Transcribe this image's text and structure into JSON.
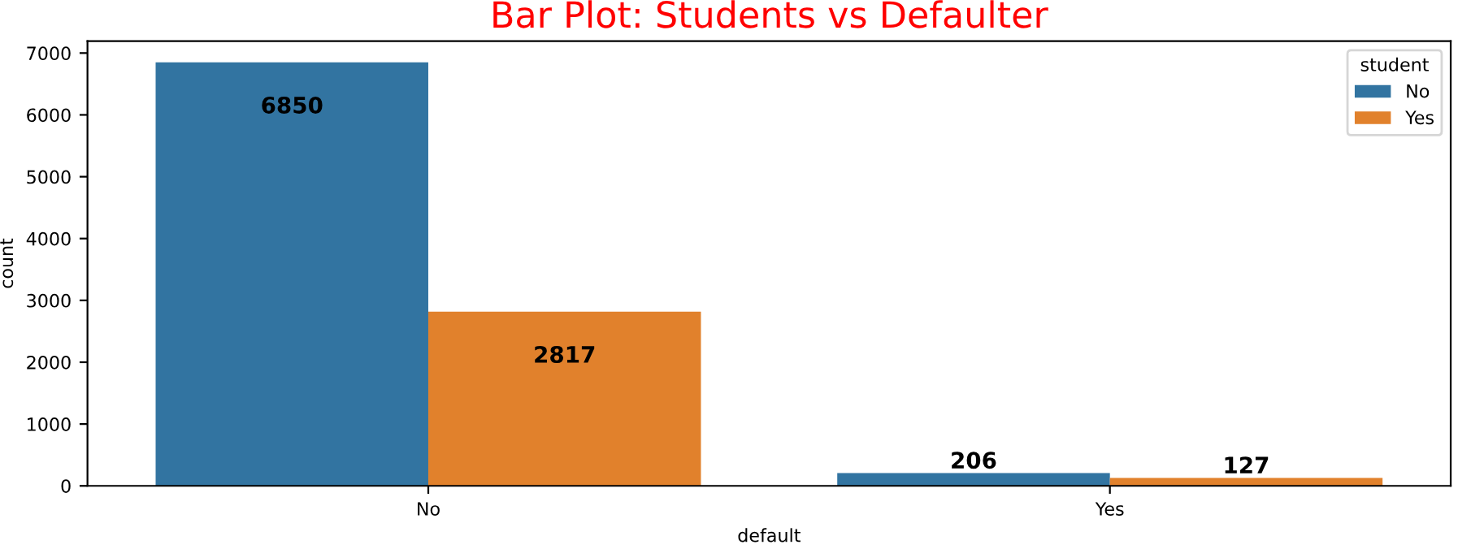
{
  "chart_data": {
    "type": "bar",
    "title": "Bar Plot: Students vs Defaulter",
    "xlabel": "default",
    "ylabel": "count",
    "legend_title": "student",
    "categories": [
      "No",
      "Yes"
    ],
    "series": [
      {
        "name": "No",
        "color": "#3274a1",
        "values": [
          6850,
          206
        ]
      },
      {
        "name": "Yes",
        "color": "#e1812c",
        "values": [
          2817,
          127
        ]
      }
    ],
    "ylim": [
      0,
      7192
    ],
    "yticks": [
      0,
      1000,
      2000,
      3000,
      4000,
      5000,
      6000,
      7000
    ],
    "grid": false,
    "legend": "top right",
    "data_labels": true
  }
}
